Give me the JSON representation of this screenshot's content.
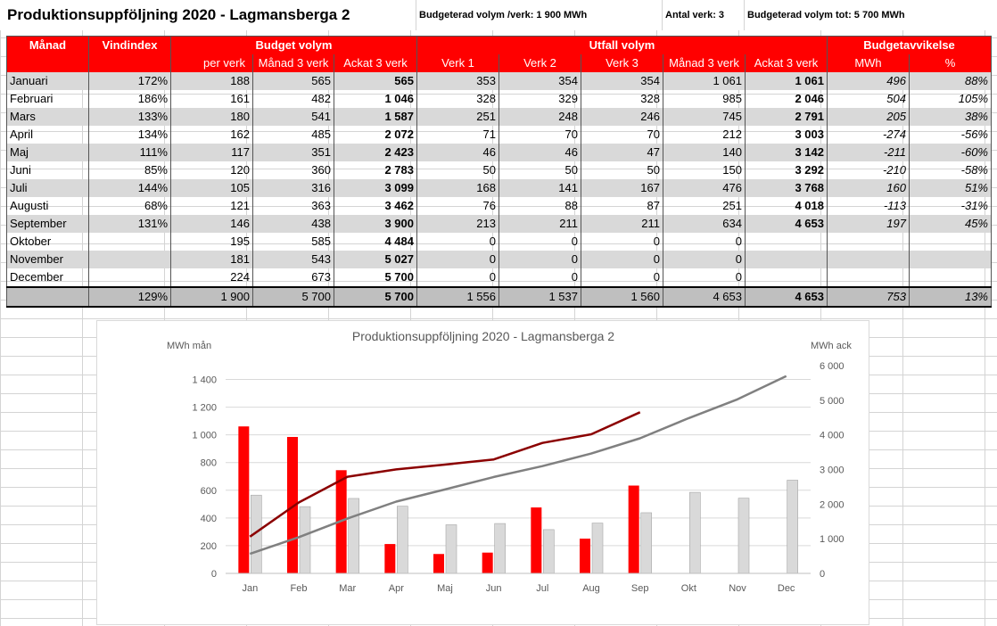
{
  "header": {
    "title": "Produktionsuppföljning 2020 - Lagmansberga 2",
    "budget_per_verk": "Budgeterad volym /verk: 1 900 MWh",
    "antal_verk": "Antal verk: 3",
    "budget_total": "Budgeterad volym tot: 5 700 MWh"
  },
  "table": {
    "group_headers": {
      "manad": "Månad",
      "vindindex": "Vindindex",
      "budget_volym": "Budget volym",
      "utfall_volym": "Utfall volym",
      "budgetavvikelse": "Budgetavvikelse"
    },
    "sub_headers": [
      "per verk",
      "Månad 3 verk",
      "Ackat 3 verk",
      "Verk 1",
      "Verk 2",
      "Verk 3",
      "Månad 3 verk",
      "Ackat 3 verk",
      "MWh",
      "%"
    ],
    "rows": [
      [
        "Januari",
        "172%",
        "188",
        "565",
        "565",
        "353",
        "354",
        "354",
        "1 061",
        "1 061",
        "496",
        "88%"
      ],
      [
        "Februari",
        "186%",
        "161",
        "482",
        "1 046",
        "328",
        "329",
        "328",
        "985",
        "2 046",
        "504",
        "105%"
      ],
      [
        "Mars",
        "133%",
        "180",
        "541",
        "1 587",
        "251",
        "248",
        "246",
        "745",
        "2 791",
        "205",
        "38%"
      ],
      [
        "April",
        "134%",
        "162",
        "485",
        "2 072",
        "71",
        "70",
        "70",
        "212",
        "3 003",
        "-274",
        "-56%"
      ],
      [
        "Maj",
        "111%",
        "117",
        "351",
        "2 423",
        "46",
        "46",
        "47",
        "140",
        "3 142",
        "-211",
        "-60%"
      ],
      [
        "Juni",
        "85%",
        "120",
        "360",
        "2 783",
        "50",
        "50",
        "50",
        "150",
        "3 292",
        "-210",
        "-58%"
      ],
      [
        "Juli",
        "144%",
        "105",
        "316",
        "3 099",
        "168",
        "141",
        "167",
        "476",
        "3 768",
        "160",
        "51%"
      ],
      [
        "Augusti",
        "68%",
        "121",
        "363",
        "3 462",
        "76",
        "88",
        "87",
        "251",
        "4 018",
        "-113",
        "-31%"
      ],
      [
        "September",
        "131%",
        "146",
        "438",
        "3 900",
        "213",
        "211",
        "211",
        "634",
        "4 653",
        "197",
        "45%"
      ],
      [
        "Oktober",
        "",
        "195",
        "585",
        "4 484",
        "0",
        "0",
        "0",
        "0",
        "",
        "",
        ""
      ],
      [
        "November",
        "",
        "181",
        "543",
        "5 027",
        "0",
        "0",
        "0",
        "0",
        "",
        "",
        ""
      ],
      [
        "December",
        "",
        "224",
        "673",
        "5 700",
        "0",
        "0",
        "0",
        "0",
        "",
        "",
        ""
      ]
    ],
    "total_row": [
      "",
      "129%",
      "1 900",
      "5 700",
      "5 700",
      "1 556",
      "1 537",
      "1 560",
      "4 653",
      "4 653",
      "753",
      "13%"
    ]
  },
  "chart_data": {
    "type": "bar",
    "title": "Produktionsuppföljning 2020 - Lagmansberga 2",
    "ylabel": "MWh mån",
    "y2label": "MWh ack",
    "categories": [
      "Jan",
      "Feb",
      "Mar",
      "Apr",
      "Maj",
      "Jun",
      "Jul",
      "Aug",
      "Sep",
      "Okt",
      "Nov",
      "Dec"
    ],
    "ylim": [
      0,
      1500
    ],
    "y2lim": [
      0,
      6000
    ],
    "yticks": [
      "0",
      "200",
      "400",
      "600",
      "800",
      "1 000",
      "1 200",
      "1 400"
    ],
    "y2ticks": [
      "0",
      "1 000",
      "2 000",
      "3 000",
      "4 000",
      "5 000",
      "6 000"
    ],
    "grid": true,
    "series": [
      {
        "kind": "bar",
        "axis": "left",
        "color": "#ff0000",
        "values": [
          1061,
          985,
          745,
          212,
          140,
          150,
          476,
          251,
          634,
          null,
          null,
          null
        ]
      },
      {
        "kind": "bar",
        "axis": "left",
        "color": "#d9d9d9",
        "values": [
          565,
          482,
          541,
          485,
          351,
          360,
          316,
          363,
          438,
          585,
          543,
          673
        ]
      },
      {
        "kind": "line",
        "axis": "right",
        "color": "#8b0000",
        "values": [
          1061,
          2046,
          2791,
          3003,
          3142,
          3292,
          3768,
          4018,
          4653,
          null,
          null,
          null
        ]
      },
      {
        "kind": "line",
        "axis": "right",
        "color": "#808080",
        "values": [
          565,
          1046,
          1587,
          2072,
          2423,
          2783,
          3099,
          3462,
          3900,
          4484,
          5027,
          5700
        ]
      }
    ]
  }
}
